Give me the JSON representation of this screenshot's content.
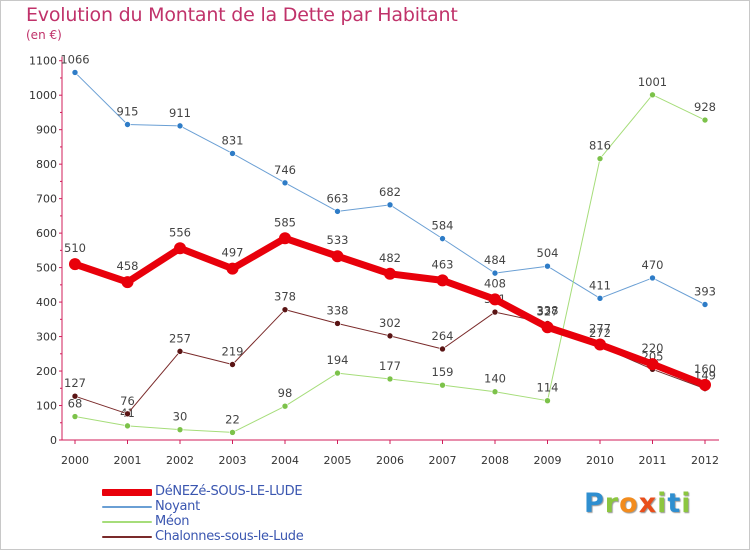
{
  "title": "Evolution du Montant de la Dette par Habitant",
  "subtitle": "(en €)",
  "logo": {
    "text": "Proxiti",
    "letters": [
      {
        "ch": "P",
        "color": "#2f8fd0"
      },
      {
        "ch": "r",
        "color": "#8cc63f"
      },
      {
        "ch": "o",
        "color": "#f28c1e"
      },
      {
        "ch": "x",
        "color": "#e94e1b"
      },
      {
        "ch": "i",
        "color": "#8cc63f"
      },
      {
        "ch": "t",
        "color": "#2f8fd0"
      },
      {
        "ch": "i",
        "color": "#8cc63f"
      }
    ]
  },
  "chart_data": {
    "type": "line",
    "title": "Evolution du Montant de la Dette par Habitant",
    "ylabel": "(en €)",
    "xlabel": "",
    "categories": [
      "2000",
      "2001",
      "2002",
      "2003",
      "2004",
      "2005",
      "2006",
      "2007",
      "2008",
      "2009",
      "2010",
      "2011",
      "2012"
    ],
    "ylim": [
      0,
      1100
    ],
    "yticks": [
      0,
      100,
      200,
      300,
      400,
      500,
      600,
      700,
      800,
      900,
      1000,
      1100
    ],
    "grid": false,
    "legend_position": "bottom-left",
    "series": [
      {
        "name": "Noyant",
        "color": "#6a9fd4",
        "marker": "#2e7cc7",
        "width": 1,
        "values": [
          1066,
          915,
          911,
          831,
          746,
          663,
          682,
          584,
          484,
          504,
          411,
          470,
          393
        ],
        "labels": [
          "1066",
          "915",
          "911",
          "831",
          "746",
          "663",
          "682",
          "584",
          "484",
          "504",
          "411",
          "470",
          "393"
        ]
      },
      {
        "name": "Méon",
        "color": "#a6dd7a",
        "marker": "#7cc24a",
        "width": 1,
        "values": [
          68,
          41,
          30,
          22,
          98,
          194,
          177,
          159,
          140,
          114,
          816,
          1001,
          928
        ],
        "labels": [
          "68",
          "41",
          "30",
          "22",
          "98",
          "194",
          "177",
          "159",
          "140",
          "114",
          "816",
          "1001",
          "928"
        ]
      },
      {
        "name": "Chalonnes-sous-le-Lude",
        "color": "#7a2a2a",
        "marker": "#5a1414",
        "width": 1,
        "values": [
          127,
          76,
          257,
          219,
          378,
          338,
          302,
          264,
          371,
          338,
          272,
          205,
          149
        ],
        "labels": [
          "127",
          "76",
          "257",
          "219",
          "378",
          "338",
          "302",
          "264",
          "371",
          "338",
          "272",
          "205",
          "149"
        ]
      },
      {
        "name": "DéNEZé-SOUS-LE-LUDE",
        "color": "#e8000b",
        "marker": "#e8000b",
        "width": 7,
        "values": [
          510,
          458,
          556,
          497,
          585,
          533,
          482,
          463,
          408,
          327,
          277,
          220,
          160
        ],
        "labels": [
          "510",
          "458",
          "556",
          "497",
          "585",
          "533",
          "482",
          "463",
          "408",
          "327",
          "277",
          "220",
          "160"
        ]
      }
    ]
  },
  "legend": [
    {
      "label": "DéNEZé-SOUS-LE-LUDE",
      "color": "#e8000b",
      "thickness": 7
    },
    {
      "label": "Noyant",
      "color": "#6a9fd4",
      "thickness": 2
    },
    {
      "label": "Méon",
      "color": "#a6dd7a",
      "thickness": 2
    },
    {
      "label": "Chalonnes-sous-le-Lude",
      "color": "#7a2a2a",
      "thickness": 2
    }
  ]
}
